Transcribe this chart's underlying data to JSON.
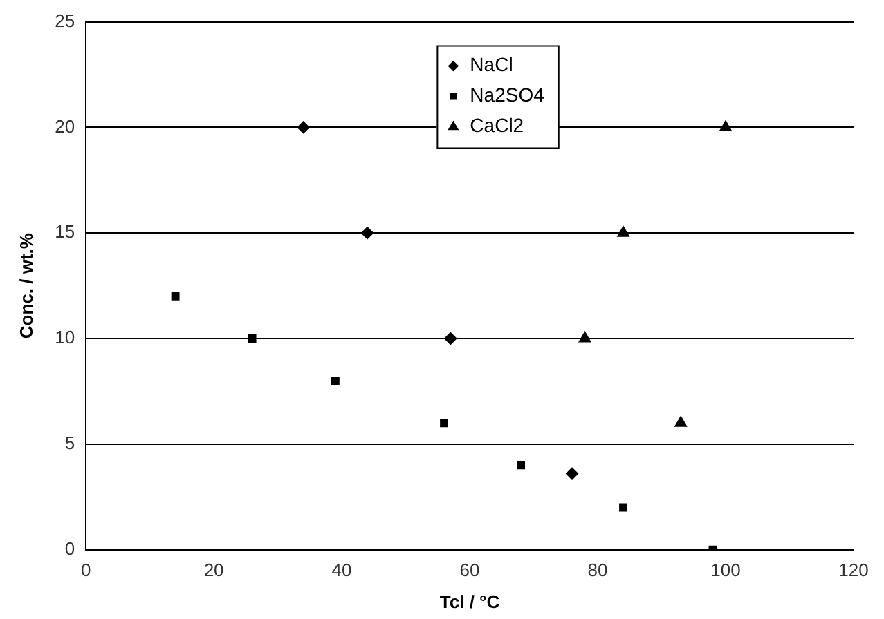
{
  "chart_data": {
    "type": "scatter",
    "xlabel": "Tcl / °C",
    "ylabel": "Conc. / wt.%",
    "xlim": [
      0,
      120
    ],
    "xticks": [
      0,
      20,
      40,
      60,
      80,
      100,
      120
    ],
    "ylim": [
      0,
      25
    ],
    "yticks": [
      0,
      5,
      10,
      15,
      20,
      25
    ],
    "grid": "y",
    "legend": "top",
    "series": [
      {
        "name": "NaCl",
        "color": "#000000",
        "marker": "diamond",
        "x": [
          34,
          44,
          57,
          76
        ],
        "values": [
          20,
          15,
          10,
          3.6
        ]
      },
      {
        "name": "Na2SO4",
        "color": "#000000",
        "marker": "square",
        "x": [
          14,
          26,
          39,
          56,
          68,
          84,
          98
        ],
        "values": [
          12,
          10,
          8,
          6,
          4,
          2,
          0
        ]
      },
      {
        "name": "CaCl2",
        "color": "#000000",
        "marker": "triangle",
        "x": [
          78,
          84,
          93,
          100
        ],
        "values": [
          10,
          15,
          6,
          20
        ]
      }
    ]
  }
}
